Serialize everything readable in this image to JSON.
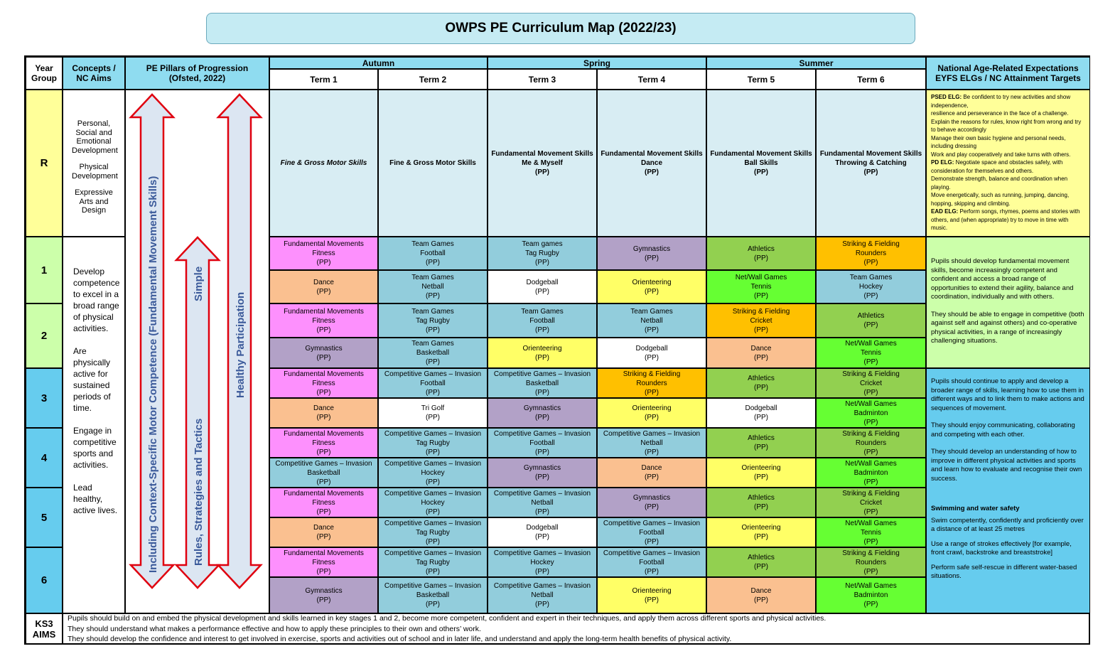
{
  "title": "OWPS PE Curriculum Map (2022/23)",
  "headers": {
    "year_group": "Year Group",
    "concepts": "Concepts / NC Aims",
    "pillars": "PE Pillars of Progression (Ofsted, 2022)",
    "seasons": [
      "Autumn",
      "Spring",
      "Summer"
    ],
    "terms": [
      "Term 1",
      "Term 2",
      "Term 3",
      "Term 4",
      "Term 5",
      "Term 6"
    ],
    "expectations": "National Age-Related Expectations EYFS ELGs / NC Attainment Targets"
  },
  "years": [
    "R",
    "1",
    "2",
    "3",
    "4",
    "5",
    "6"
  ],
  "ks3_label": "KS3 AIMS",
  "concepts_r": [
    "Personal, Social and Emotional Development",
    "Physical Development",
    "Expressive Arts and Design"
  ],
  "nc_aims": [
    "Develop competence to excel in a broad range of physical activities.",
    "Are physically active for sustained periods of time.",
    "Engage in competitive sports and activities.",
    "Lead healthy, active lives."
  ],
  "pillars": {
    "motor": "Including Context-Specific  Motor Competence  (Fundamental Movement Skills)",
    "rules": "Rules, Strategies and Tactics",
    "simple": "Simple",
    "health": "Healthy Participation"
  },
  "reception": [
    {
      "line1": "Fine & Gross Motor Skills",
      "line2": "",
      "line3": ""
    },
    {
      "line1": "Fine & Gross Motor Skills",
      "line2": "",
      "line3": ""
    },
    {
      "line1": "Fundamental Movement Skills",
      "line2": "Me & Myself",
      "line3": "(PP)"
    },
    {
      "line1": "Fundamental Movement Skills",
      "line2": "Dance",
      "line3": "(PP)"
    },
    {
      "line1": "Fundamental Movement Skills",
      "line2": "Ball Skills",
      "line3": "(PP)"
    },
    {
      "line1": "Fundamental Movement Skills",
      "line2": "Throwing & Catching",
      "line3": "(PP)"
    }
  ],
  "activities": {
    "fm": {
      "a": "Fundamental Movements",
      "b": "Fitness",
      "c": "(PP)"
    },
    "dance": {
      "a": "Dance",
      "b": "(PP)"
    },
    "gym": {
      "a": "Gymnastics",
      "b": "(PP)"
    },
    "ath": {
      "a": "Athletics",
      "b": "(PP)"
    },
    "orient": {
      "a": "Orienteering",
      "b": "(PP)"
    },
    "dodge": {
      "a": "Dodgeball",
      "b": "(PP)"
    },
    "trigolf": {
      "a": "Tri Golf",
      "b": "(PP)"
    },
    "tg_football": {
      "a": "Team Games",
      "b": "Football",
      "c": "(PP)"
    },
    "tg_netball": {
      "a": "Team Games",
      "b": "Netball",
      "c": "(PP)"
    },
    "tg_tagrugby_lc": {
      "a": "Team games",
      "b": "Tag Rugby",
      "c": "(PP)"
    },
    "tg_tagrugby": {
      "a": "Team Games",
      "b": "Tag Rugby",
      "c": "(PP)"
    },
    "tg_basketball": {
      "a": "Team Games",
      "b": "Basketball",
      "c": "(PP)"
    },
    "tg_hockey": {
      "a": "Team Games",
      "b": "Hockey",
      "c": "(PP)"
    },
    "ci_football": {
      "a": "Competitive Games – Invasion",
      "b": "Football",
      "c": "(PP)"
    },
    "ci_basketball": {
      "a": "Competitive Games – Invasion",
      "b": "Basketball",
      "c": "(PP)"
    },
    "ci_tagrugby": {
      "a": "Competitive Games – Invasion",
      "b": "Tag Rugby",
      "c": "(PP)"
    },
    "ci_netball": {
      "a": "Competitive Games – Invasion",
      "b": "Netball",
      "c": "(PP)"
    },
    "ci_hockey": {
      "a": "Competitive Games – Invasion",
      "b": "Hockey",
      "c": "(PP)"
    },
    "sf_rounders": {
      "a": "Striking & Fielding",
      "b": "Rounders",
      "c": "(PP)"
    },
    "sf_cricket": {
      "a": "Striking & Fielding",
      "b": "Cricket",
      "c": "(PP)"
    },
    "nw_tennis": {
      "a": "Net/Wall Games",
      "b": "Tennis",
      "c": "(PP)"
    },
    "nw_badminton": {
      "a": "Net/Wall Games",
      "b": "Badminton",
      "c": "(PP)"
    }
  },
  "eyfs": [
    {
      "label": "PSED ELG:",
      "text": " Be confident to try new activities and show independence,"
    },
    {
      "label": "",
      "text": "resilience and perseverance in the face of a challenge."
    },
    {
      "label": "",
      "text": "Explain the reasons for rules, know right from wrong and try to behave accordingly"
    },
    {
      "label": "",
      "text": "Manage their own basic hygiene and personal needs, including dressing"
    },
    {
      "label": "",
      "text": "Work and play cooperatively and take turns with others."
    },
    {
      "label": "PD ELG:",
      "text": " Negotiate space and obstacles safely, with consideration for themselves and others."
    },
    {
      "label": "",
      "text": "Demonstrate strength, balance and coordination when playing."
    },
    {
      "label": "",
      "text": "Move energetically, such as running, jumping, dancing, hopping, skipping and climbing."
    },
    {
      "label": "EAD ELG:",
      "text": " Perform songs, rhymes, poems and stories with others, and (when appropriate) try to move in time with music."
    }
  ],
  "ks1_targets": [
    "Pupils should develop fundamental movement skills, become increasingly competent and confident and access a broad range of opportunities to extend their agility, balance and coordination, individually and with others.",
    "They should be able to engage in competitive (both against self and against others) and co-operative physical activities, in a range of increasingly challenging situations."
  ],
  "ks2_targets": [
    "Pupils should continue to apply and develop a broader range of skills, learning how to use them in different ways and to link them to make actions and sequences of movement.",
    "They should enjoy communicating, collaborating and competing with each other.",
    "They should develop an understanding of how to improve in different physical activities and sports and learn how to evaluate and recognise their own success."
  ],
  "swimming": {
    "heading": "Swimming and water safety",
    "items": [
      "Swim competently, confidently and proficiently over a distance of at least 25 metres",
      "Use a range of strokes effectively [for example, front crawl, backstroke and breaststroke]",
      "Perform safe self-rescue in different water-based situations."
    ]
  },
  "ks3_aims": [
    "Pupils should build on and embed the physical development and skills learned in key stages 1 and 2, become more competent, confident and expert in their techniques, and apply them across different sports and physical activities.",
    "They should understand what makes a performance effective and how to apply these principles to their own and others’ work.",
    "They should develop the confidence and interest to get involved in exercise, sports and activities out of school and in later life, and understand and apply the long-term health benefits of physical activity."
  ],
  "colors": {
    "arrow": "#e0000f",
    "arrow_fill": "#dce6f2",
    "header": "#8fdcf0"
  }
}
